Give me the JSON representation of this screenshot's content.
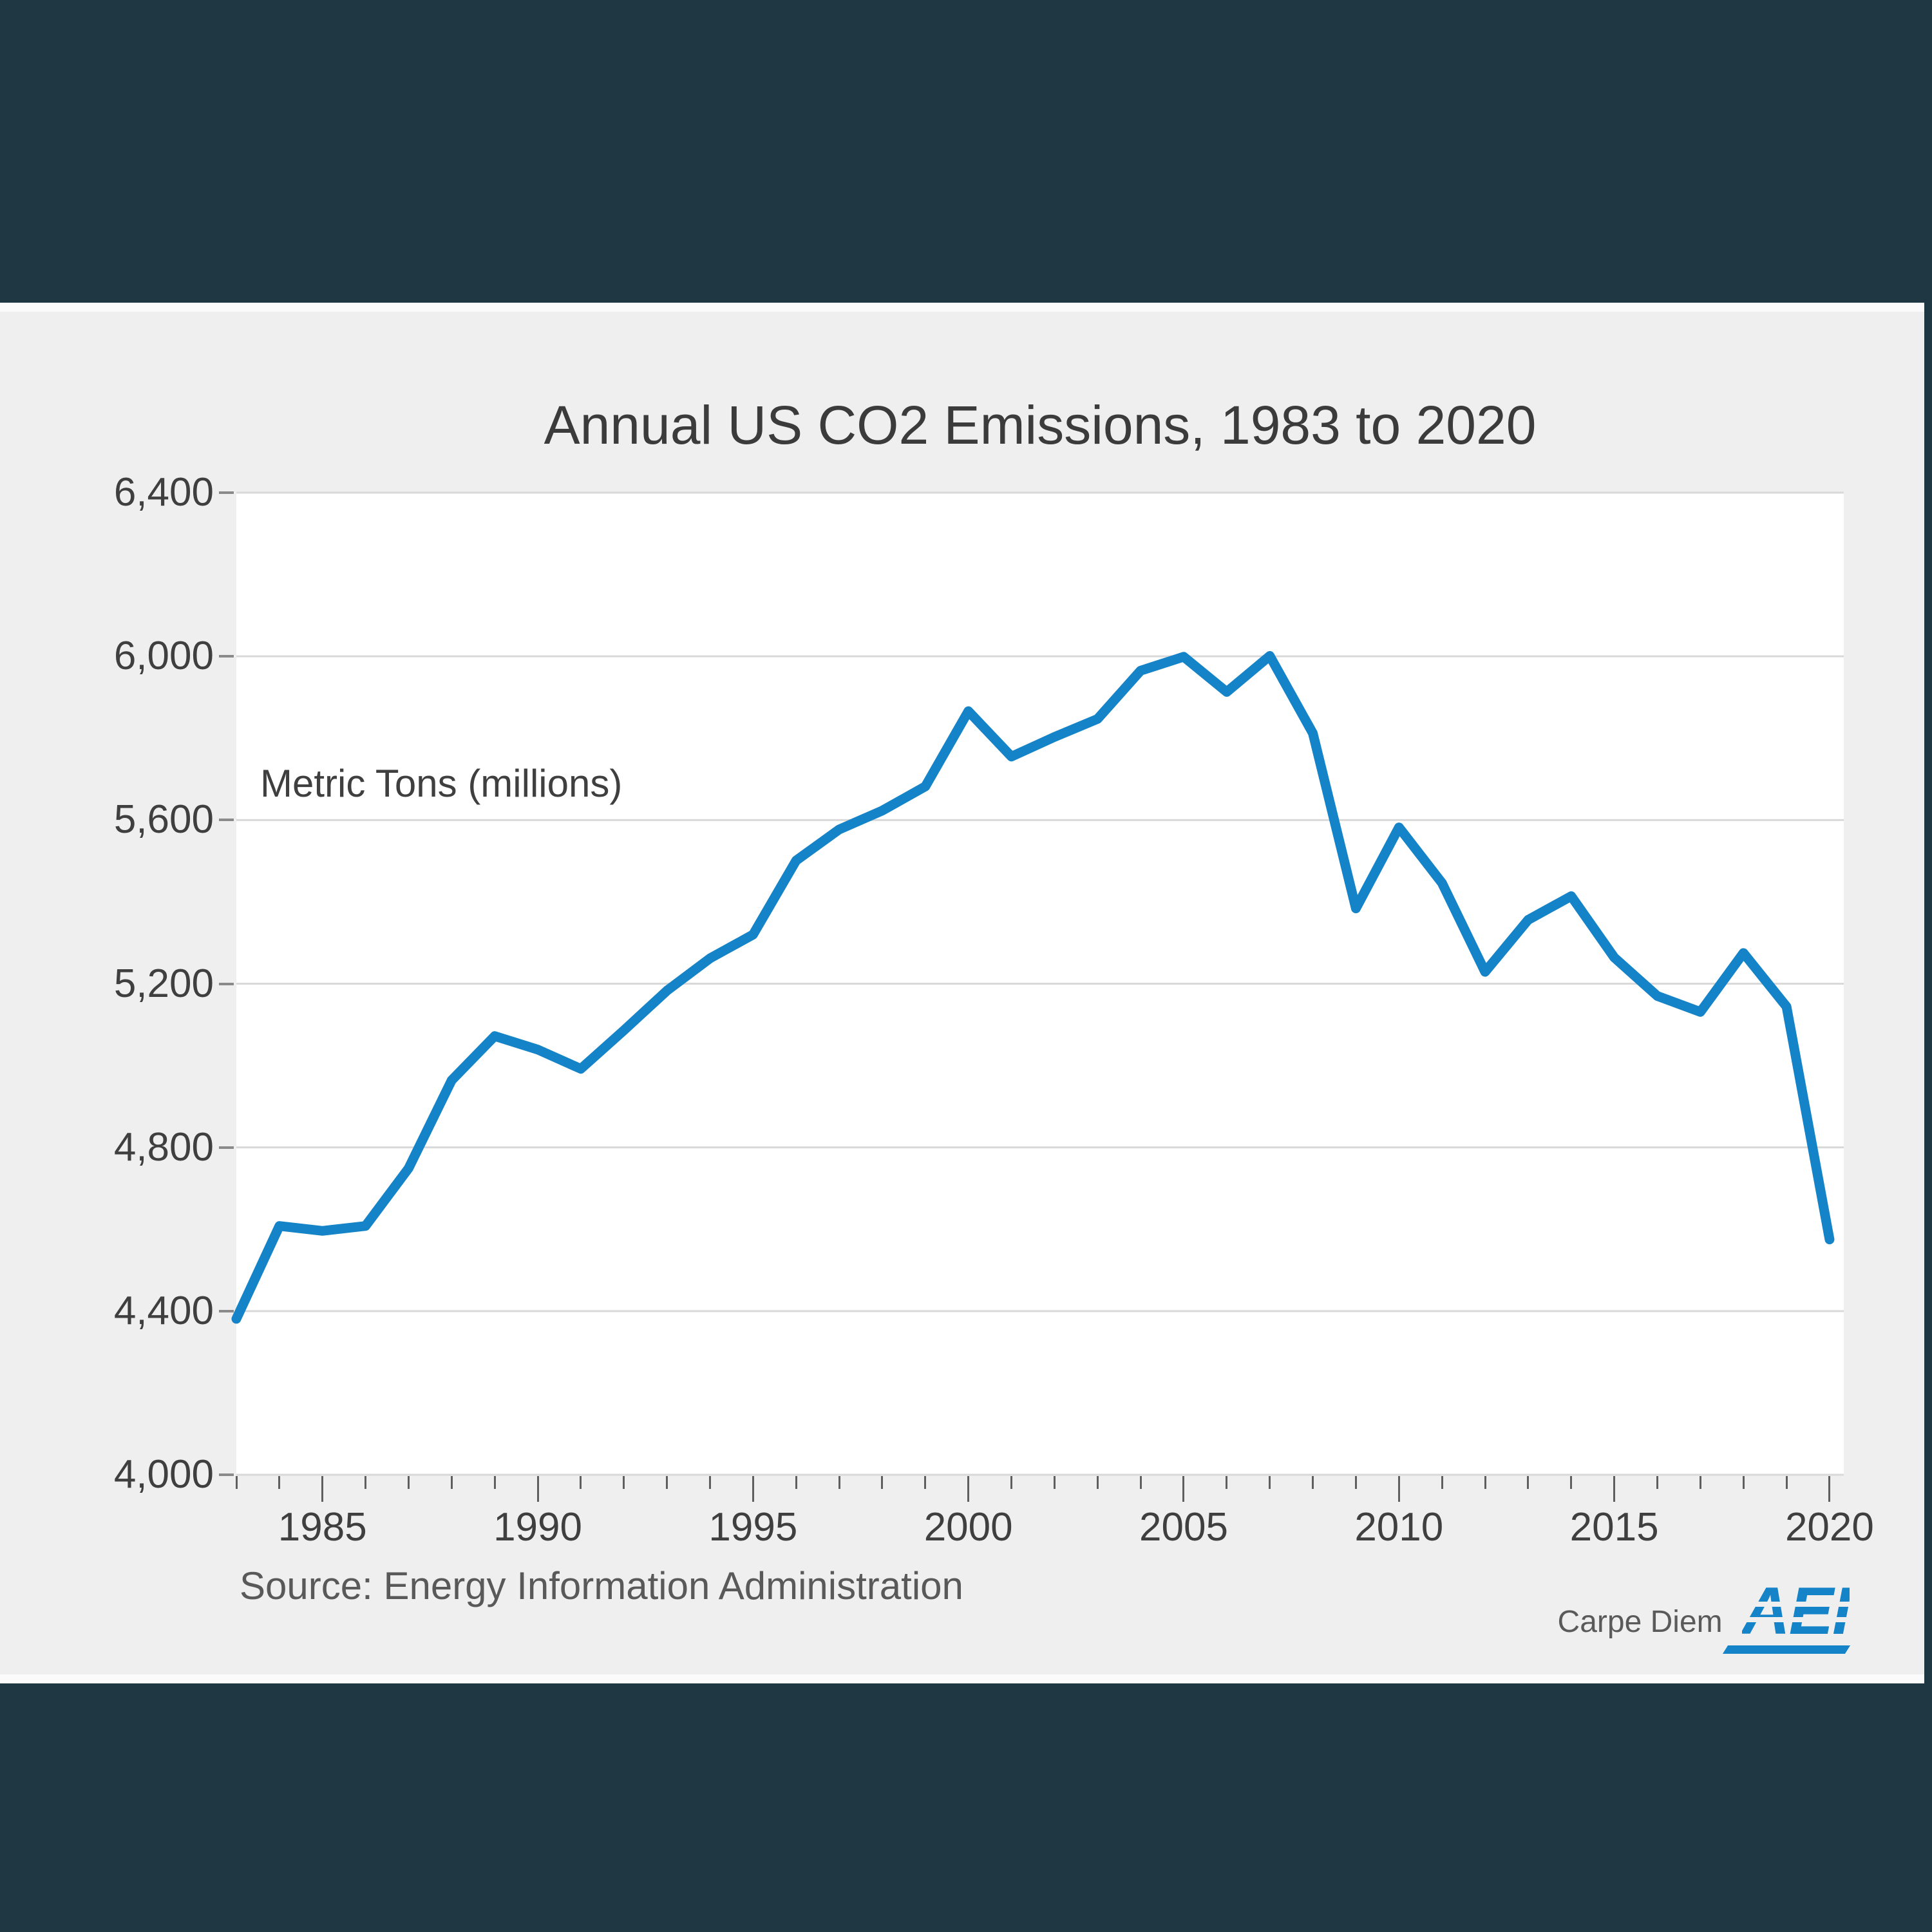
{
  "page": {
    "background_color": "#efefef",
    "band_color": "#1f3743",
    "plot_background": "#ffffff",
    "gridline_color": "#d9d9d9"
  },
  "chart": {
    "source_note": "Source: Energy Information Administration",
    "branding": {
      "carpe_diem": "Carpe Diem",
      "logo": "AEI"
    }
  },
  "chart_data": {
    "type": "line",
    "title": "Annual US CO2 Emissions, 1983 to 2020",
    "xlabel": "",
    "ylabel": "Metric Tons (millions)",
    "x": [
      1983,
      1984,
      1985,
      1986,
      1987,
      1988,
      1989,
      1990,
      1991,
      1992,
      1993,
      1994,
      1995,
      1996,
      1997,
      1998,
      1999,
      2000,
      2001,
      2002,
      2003,
      2004,
      2005,
      2006,
      2007,
      2008,
      2009,
      2010,
      2011,
      2012,
      2013,
      2014,
      2015,
      2016,
      2017,
      2018,
      2019,
      2020
    ],
    "values": [
      4381,
      4608,
      4596,
      4608,
      4749,
      4964,
      5072,
      5039,
      4992,
      5086,
      5183,
      5262,
      5320,
      5501,
      5577,
      5623,
      5682,
      5866,
      5755,
      5803,
      5847,
      5965,
      5999,
      5913,
      6001,
      5812,
      5384,
      5582,
      5446,
      5229,
      5356,
      5414,
      5264,
      5170,
      5131,
      5275,
      5144,
      4575
    ],
    "ylim": [
      4000,
      6400
    ],
    "xlim": [
      1983,
      2020.33
    ],
    "grid": true,
    "legend": false,
    "line_color": "#1583c7",
    "y_ticks": [
      {
        "value": 4000,
        "label": "4,000"
      },
      {
        "value": 4400,
        "label": "4,400"
      },
      {
        "value": 4800,
        "label": "4,800"
      },
      {
        "value": 5200,
        "label": "5,200"
      },
      {
        "value": 5600,
        "label": "5,600"
      },
      {
        "value": 6000,
        "label": "6,000"
      },
      {
        "value": 6400,
        "label": "6,400"
      }
    ],
    "x_major_ticks": [
      {
        "value": 1985,
        "label": "1985"
      },
      {
        "value": 1990,
        "label": "1990"
      },
      {
        "value": 1995,
        "label": "1995"
      },
      {
        "value": 2000,
        "label": "2000"
      },
      {
        "value": 2005,
        "label": "2005"
      },
      {
        "value": 2010,
        "label": "2010"
      },
      {
        "value": 2015,
        "label": "2015"
      },
      {
        "value": 2020,
        "label": "2020"
      }
    ],
    "annotations": [
      "Metric Tons (millions)"
    ]
  }
}
